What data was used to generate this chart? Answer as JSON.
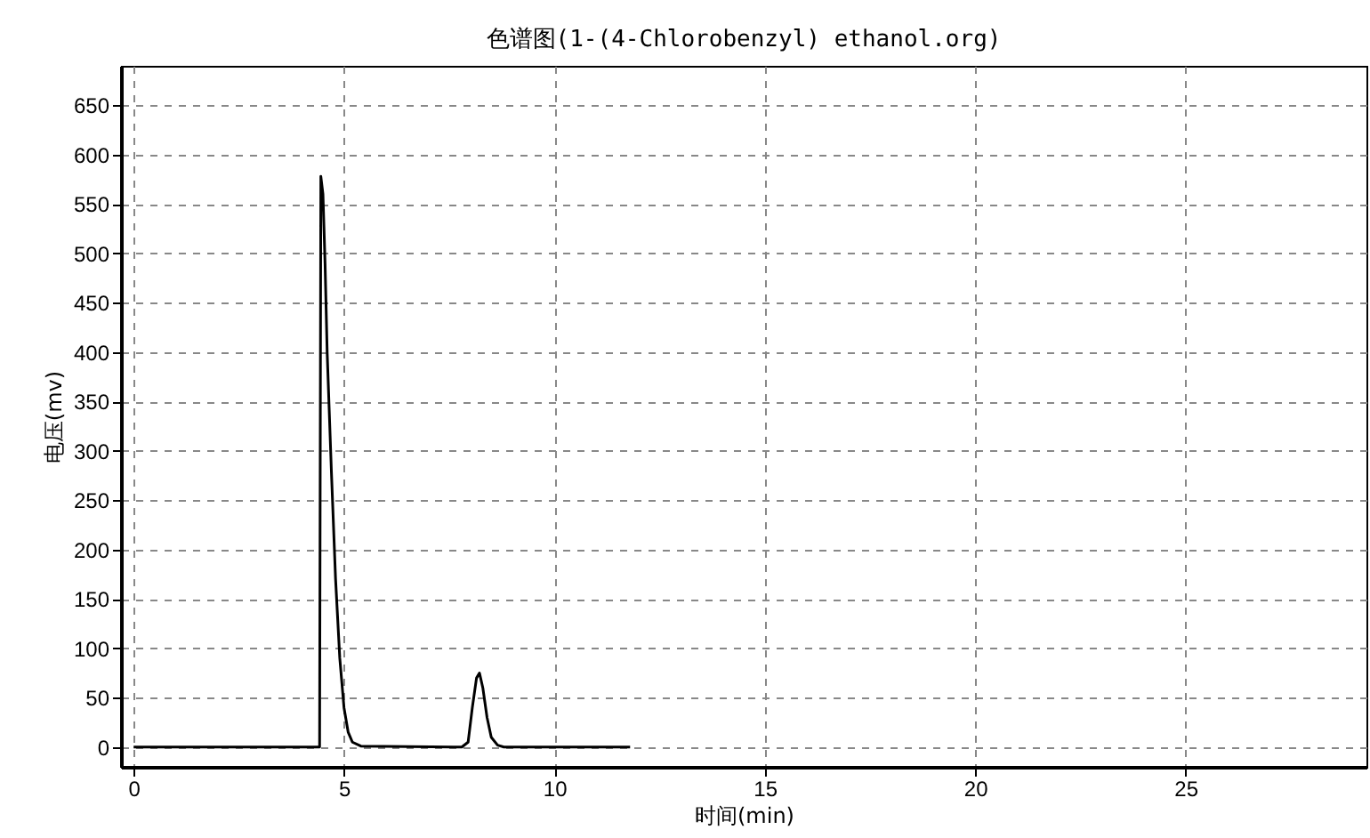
{
  "chart_data": {
    "type": "line",
    "title": "色谱图(1-(4-Chlorobenzyl) ethanol.org)",
    "xlabel": "时间(min)",
    "ylabel": "电压(mv)",
    "x": [
      0,
      4.42,
      4.45,
      4.5,
      4.55,
      4.6,
      4.7,
      4.8,
      4.9,
      5.0,
      5.1,
      5.2,
      5.4,
      7.8,
      7.95,
      8.05,
      8.15,
      8.22,
      8.3,
      8.4,
      8.5,
      8.65,
      8.8,
      11.8
    ],
    "series": [
      {
        "color": "#000000",
        "values": [
          0,
          0,
          578,
          560,
          490,
          400,
          280,
          170,
          90,
          40,
          15,
          5,
          1,
          0,
          5,
          40,
          70,
          75,
          60,
          30,
          10,
          2,
          0,
          0
        ]
      }
    ],
    "xlim": [
      -0.3,
      29.3
    ],
    "xticks": [
      0,
      5,
      10,
      15,
      20,
      25
    ],
    "ylim": [
      -20,
      690
    ],
    "yticks": [
      0,
      50,
      100,
      150,
      200,
      250,
      300,
      350,
      400,
      450,
      500,
      550,
      600,
      650
    ],
    "grid": true,
    "line_style": "solid",
    "marker": "none"
  }
}
